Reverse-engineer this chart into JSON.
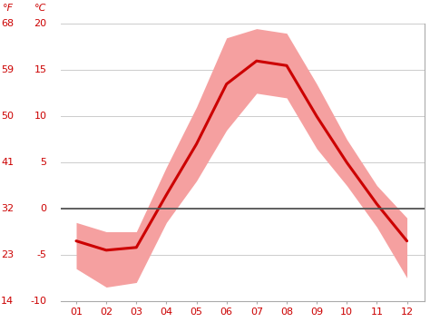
{
  "months": [
    1,
    2,
    3,
    4,
    5,
    6,
    7,
    8,
    9,
    10,
    11,
    12
  ],
  "month_labels": [
    "01",
    "02",
    "03",
    "04",
    "05",
    "06",
    "07",
    "08",
    "09",
    "10",
    "11",
    "12"
  ],
  "mean_c": [
    -3.5,
    -4.5,
    -4.2,
    1.5,
    7.0,
    13.5,
    16.0,
    15.5,
    10.0,
    5.0,
    0.5,
    -3.5
  ],
  "upper_c": [
    -1.5,
    -2.5,
    -2.5,
    4.5,
    11.0,
    18.5,
    19.5,
    19.0,
    13.5,
    7.5,
    2.5,
    -1.0
  ],
  "lower_c": [
    -6.5,
    -8.5,
    -8.0,
    -1.5,
    3.0,
    8.5,
    12.5,
    12.0,
    6.5,
    2.5,
    -2.0,
    -7.5
  ],
  "ylim_c": [
    -10,
    20
  ],
  "yticks_c": [
    -10,
    -5,
    0,
    5,
    10,
    15,
    20
  ],
  "yticks_f": [
    14,
    23,
    32,
    41,
    50,
    59,
    68
  ],
  "line_color": "#cc0000",
  "band_color": "#f5a0a0",
  "zero_line_color": "#555555",
  "background_color": "#ffffff",
  "grid_color": "#cccccc",
  "label_color": "#cc0000",
  "spine_color": "#aaaaaa",
  "tick_label_fontsize": 8,
  "header_fontsize": 8
}
